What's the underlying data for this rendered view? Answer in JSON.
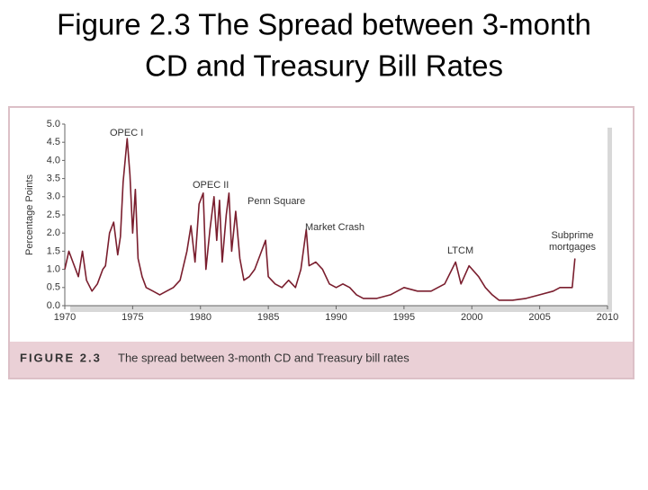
{
  "slide_title": [
    "Figure 2.3 The Spread between 3-month",
    "CD and Treasury Bill Rates"
  ],
  "chart_data": {
    "type": "line",
    "ylabel": "Percentage Points",
    "caption_label": "FIGURE 2.3",
    "caption": "The spread between 3-month CD and Treasury bill rates",
    "xlim": [
      1970,
      2010
    ],
    "xticks": [
      1970,
      1975,
      1980,
      1985,
      1990,
      1995,
      2000,
      2005,
      2010
    ],
    "ylim": [
      0,
      5
    ],
    "yticks": [
      {
        "value": 0,
        "label": "0.0"
      },
      0.5,
      {
        "value": 1,
        "label": "1.0"
      },
      1.5,
      {
        "value": 2,
        "label": "2.0"
      },
      2.5,
      {
        "value": 3,
        "label": "3.0"
      },
      3.5,
      {
        "value": 4,
        "label": "4.0"
      },
      4.5,
      {
        "value": 5,
        "label": "5.0"
      }
    ],
    "annotations": [
      {
        "text": [
          "OPEC I"
        ]
      },
      {
        "text": [
          "OPEC II"
        ]
      },
      {
        "text": [
          "Penn Square"
        ]
      },
      {
        "text": [
          "Market Crash"
        ]
      },
      {
        "text": [
          "LTCM"
        ]
      },
      {
        "text": [
          "Subprime",
          "mortgages"
        ]
      }
    ],
    "series": [
      {
        "color": "#7a1e2e",
        "x": [
          1970,
          1970.3,
          1970.6,
          1971,
          1971.3,
          1971.6,
          1972,
          1972.4,
          1972.8,
          1973,
          1973.3,
          1973.6,
          1973.9,
          1974.1,
          1974.3,
          1974.6,
          1974.8,
          1975,
          1975.2,
          1975.4,
          1975.7,
          1976,
          1976.5,
          1977,
          1977.5,
          1978,
          1978.5,
          1979,
          1979.3,
          1979.6,
          1979.9,
          1980.2,
          1980.4,
          1980.7,
          1981,
          1981.2,
          1981.4,
          1981.6,
          1981.9,
          1982.1,
          1982.3,
          1982.6,
          1982.9,
          1983.2,
          1983.6,
          1984,
          1984.4,
          1984.8,
          1985,
          1985.5,
          1986,
          1986.5,
          1987,
          1987.4,
          1987.8,
          1988,
          1988.5,
          1989,
          1989.5,
          1990,
          1990.5,
          1991,
          1991.5,
          1992,
          1993,
          1994,
          1995,
          1996,
          1997,
          1998,
          1998.8,
          1999.2,
          1999.8,
          2000.5,
          2001,
          2001.5,
          2002,
          2003,
          2004,
          2005,
          2006,
          2006.5,
          2007,
          2007.4,
          2007.6
        ],
        "values": [
          1.0,
          1.5,
          1.2,
          0.8,
          1.5,
          0.7,
          0.4,
          0.6,
          1.0,
          1.1,
          2.0,
          2.3,
          1.4,
          1.9,
          3.4,
          4.6,
          3.6,
          2.0,
          3.2,
          1.3,
          0.8,
          0.5,
          0.4,
          0.3,
          0.4,
          0.5,
          0.7,
          1.5,
          2.2,
          1.2,
          2.8,
          3.1,
          1.0,
          2.1,
          3.0,
          1.8,
          2.9,
          1.2,
          2.5,
          3.1,
          1.5,
          2.6,
          1.3,
          0.7,
          0.8,
          1.0,
          1.4,
          1.8,
          0.8,
          0.6,
          0.5,
          0.7,
          0.5,
          1.0,
          2.1,
          1.1,
          1.2,
          1.0,
          0.6,
          0.5,
          0.6,
          0.5,
          0.3,
          0.2,
          0.2,
          0.3,
          0.5,
          0.4,
          0.4,
          0.6,
          1.2,
          0.6,
          1.1,
          0.8,
          0.5,
          0.3,
          0.15,
          0.15,
          0.2,
          0.3,
          0.4,
          0.5,
          0.5,
          0.5,
          1.3
        ]
      }
    ]
  }
}
